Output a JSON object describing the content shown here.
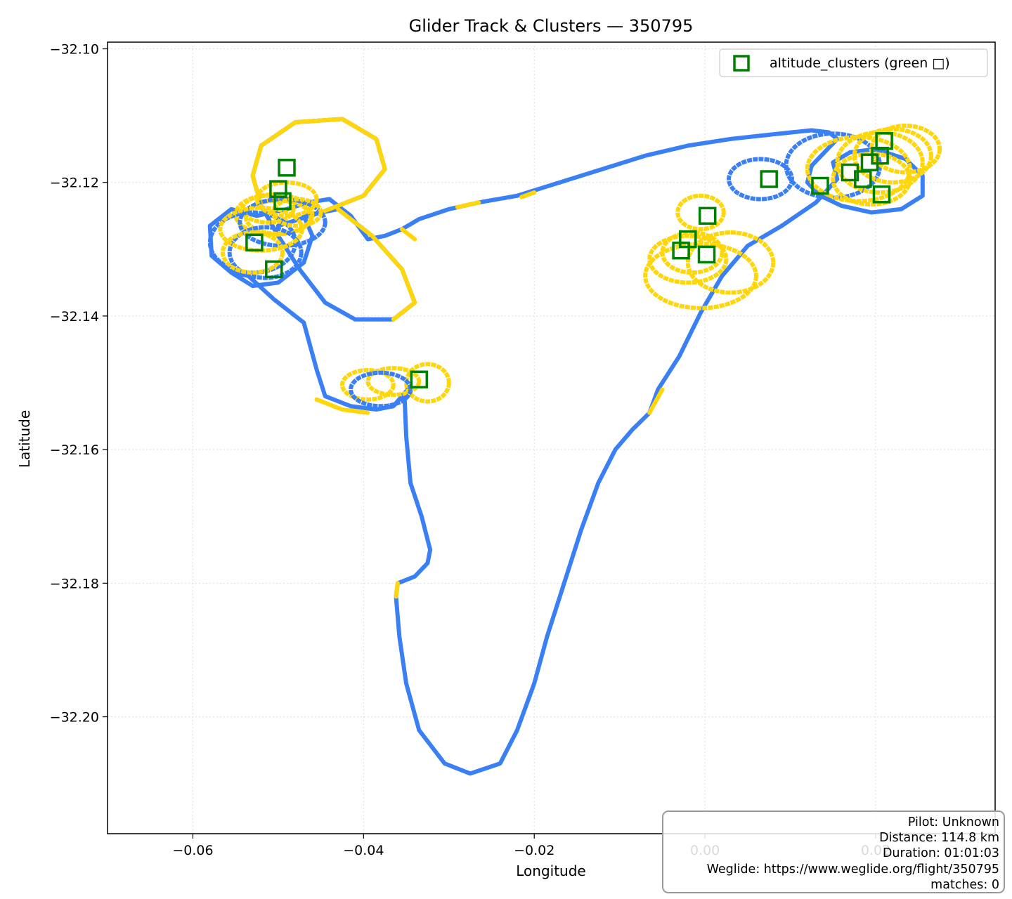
{
  "chart_data": {
    "type": "scatter",
    "title": "Glider Track & Clusters — 350795",
    "xlabel": "Longitude",
    "ylabel": "Latitude",
    "xlim": [
      -0.07,
      0.034
    ],
    "ylim": [
      -32.2175,
      -32.099
    ],
    "x_ticks": [
      -0.06,
      -0.04,
      -0.02,
      0.0,
      0.02
    ],
    "x_tick_labels": [
      "−0.06",
      "−0.04",
      "−0.02",
      "0.00",
      "0.02"
    ],
    "y_ticks": [
      -32.1,
      -32.12,
      -32.14,
      -32.16,
      -32.18,
      -32.2
    ],
    "y_tick_labels": [
      "−32.10",
      "−32.12",
      "−32.14",
      "−32.16",
      "−32.18",
      "−32.20"
    ],
    "grid": true,
    "legend": {
      "placement": "top-right",
      "entries": [
        {
          "label": "altitude_clusters (green □)",
          "color": "#008000",
          "marker": "hollow-square"
        }
      ]
    },
    "track_color": "#3b7ff5",
    "climb_color": "#ffd60a",
    "cluster_color": "#008000",
    "track_path": [
      [
        -0.0275,
        -32.2085
      ],
      [
        -0.0305,
        -32.207
      ],
      [
        -0.0335,
        -32.202
      ],
      [
        -0.035,
        -32.195
      ],
      [
        -0.0358,
        -32.188
      ],
      [
        -0.0362,
        -32.182
      ],
      [
        -0.036,
        -32.18
      ],
      [
        -0.034,
        -32.179
      ],
      [
        -0.0325,
        -32.177
      ],
      [
        -0.0322,
        -32.175
      ],
      [
        -0.0332,
        -32.17
      ],
      [
        -0.0345,
        -32.165
      ],
      [
        -0.035,
        -32.158
      ],
      [
        -0.0352,
        -32.152
      ],
      [
        -0.0345,
        -32.1505
      ],
      [
        -0.0365,
        -32.1535
      ],
      [
        -0.0385,
        -32.154
      ],
      [
        -0.0415,
        -32.1535
      ],
      [
        -0.0445,
        -32.152
      ],
      [
        -0.0455,
        -32.148
      ],
      [
        -0.047,
        -32.141
      ],
      [
        -0.0505,
        -32.1375
      ],
      [
        -0.0535,
        -32.134
      ],
      [
        -0.0555,
        -32.1335
      ],
      [
        -0.0578,
        -32.131
      ],
      [
        -0.058,
        -32.1265
      ],
      [
        -0.0555,
        -32.124
      ],
      [
        -0.0525,
        -32.125
      ],
      [
        -0.049,
        -32.124
      ],
      [
        -0.0465,
        -32.123
      ],
      [
        -0.044,
        -32.1225
      ],
      [
        -0.0415,
        -32.125
      ],
      [
        -0.0395,
        -32.1285
      ],
      [
        -0.0375,
        -32.128
      ],
      [
        -0.0355,
        -32.127
      ],
      [
        -0.0335,
        -32.1255
      ],
      [
        -0.03,
        -32.124
      ],
      [
        -0.0265,
        -32.123
      ],
      [
        -0.022,
        -32.122
      ],
      [
        -0.017,
        -32.12
      ],
      [
        -0.012,
        -32.118
      ],
      [
        -0.007,
        -32.116
      ],
      [
        -0.002,
        -32.1145
      ],
      [
        0.003,
        -32.1135
      ],
      [
        0.008,
        -32.1128
      ],
      [
        0.0125,
        -32.1122
      ],
      [
        0.0145,
        -32.1125
      ],
      [
        0.0155,
        -32.1135
      ],
      [
        0.014,
        -32.1155
      ],
      [
        0.0125,
        -32.1175
      ],
      [
        0.012,
        -32.12
      ],
      [
        0.0135,
        -32.122
      ],
      [
        0.016,
        -32.1235
      ],
      [
        0.0195,
        -32.1245
      ],
      [
        0.023,
        -32.124
      ],
      [
        0.0255,
        -32.122
      ],
      [
        0.0255,
        -32.119
      ],
      [
        0.0235,
        -32.1165
      ],
      [
        0.02,
        -32.115
      ],
      [
        0.017,
        -32.1155
      ],
      [
        0.015,
        -32.117
      ],
      [
        0.0155,
        -32.1195
      ],
      [
        0.013,
        -32.123
      ],
      [
        0.009,
        -32.1265
      ],
      [
        0.005,
        -32.1295
      ],
      [
        0.002,
        -32.134
      ],
      [
        -0.0005,
        -32.1395
      ],
      [
        -0.003,
        -32.146
      ],
      [
        -0.0055,
        -32.151
      ],
      [
        -0.0065,
        -32.1545
      ],
      [
        -0.0085,
        -32.157
      ],
      [
        -0.0105,
        -32.16
      ],
      [
        -0.0125,
        -32.165
      ],
      [
        -0.0145,
        -32.172
      ],
      [
        -0.0165,
        -32.18
      ],
      [
        -0.0185,
        -32.188
      ],
      [
        -0.02,
        -32.195
      ],
      [
        -0.022,
        -32.202
      ],
      [
        -0.024,
        -32.207
      ],
      [
        -0.0275,
        -32.2085
      ]
    ],
    "north_loop_path": [
      [
        -0.0555,
        -32.1335
      ],
      [
        -0.053,
        -32.1355
      ],
      [
        -0.05,
        -32.135
      ],
      [
        -0.047,
        -32.132
      ],
      [
        -0.046,
        -32.128
      ],
      [
        -0.047,
        -32.125
      ],
      [
        -0.043,
        -32.124
      ],
      [
        -0.039,
        -32.128
      ],
      [
        -0.0355,
        -32.133
      ],
      [
        -0.034,
        -32.138
      ],
      [
        -0.0365,
        -32.1405
      ],
      [
        -0.041,
        -32.1405
      ],
      [
        -0.0445,
        -32.138
      ],
      [
        -0.0475,
        -32.133
      ],
      [
        -0.05,
        -32.128
      ],
      [
        -0.052,
        -32.1235
      ],
      [
        -0.053,
        -32.119
      ],
      [
        -0.052,
        -32.1145
      ],
      [
        -0.048,
        -32.111
      ],
      [
        -0.0425,
        -32.1105
      ],
      [
        -0.0385,
        -32.1135
      ],
      [
        -0.0375,
        -32.118
      ],
      [
        -0.04,
        -32.122
      ],
      [
        -0.045,
        -32.1245
      ],
      [
        -0.05,
        -32.1265
      ]
    ],
    "circles": [
      {
        "cx": -0.0505,
        "cy": -32.1248,
        "rx": 0.0045,
        "ry": 0.003,
        "climb": true
      },
      {
        "cx": -0.05,
        "cy": -32.1252,
        "rx": 0.0038,
        "ry": 0.0025,
        "climb": true
      },
      {
        "cx": -0.0512,
        "cy": -32.124,
        "rx": 0.003,
        "ry": 0.002,
        "climb": true
      },
      {
        "cx": -0.0495,
        "cy": -32.126,
        "rx": 0.005,
        "ry": 0.0035,
        "climb": false
      },
      {
        "cx": -0.053,
        "cy": -32.129,
        "rx": 0.005,
        "ry": 0.0045,
        "climb": false
      },
      {
        "cx": -0.0515,
        "cy": -32.1305,
        "rx": 0.0042,
        "ry": 0.0038,
        "climb": false
      },
      {
        "cx": -0.049,
        "cy": -32.1225,
        "rx": 0.0035,
        "ry": 0.0025,
        "climb": true
      },
      {
        "cx": -0.052,
        "cy": -32.127,
        "rx": 0.0048,
        "ry": 0.0032,
        "climb": true
      },
      {
        "cx": -0.0478,
        "cy": -32.1245,
        "rx": 0.0028,
        "ry": 0.002,
        "climb": true
      },
      {
        "cx": -0.053,
        "cy": -32.1305,
        "rx": 0.0035,
        "ry": 0.003,
        "climb": true
      },
      {
        "cx": -0.0395,
        "cy": -32.1503,
        "rx": 0.003,
        "ry": 0.0022,
        "climb": true
      },
      {
        "cx": -0.0365,
        "cy": -32.1498,
        "rx": 0.003,
        "ry": 0.002,
        "climb": true
      },
      {
        "cx": -0.0325,
        "cy": -32.15,
        "rx": 0.0025,
        "ry": 0.0028,
        "climb": true
      },
      {
        "cx": -0.038,
        "cy": -32.151,
        "rx": 0.0035,
        "ry": 0.0025,
        "climb": false
      },
      {
        "cx": -0.002,
        "cy": -32.1315,
        "rx": 0.0045,
        "ry": 0.0035,
        "climb": true
      },
      {
        "cx": -0.0005,
        "cy": -32.134,
        "rx": 0.0065,
        "ry": 0.0048,
        "climb": true
      },
      {
        "cx": 0.003,
        "cy": -32.132,
        "rx": 0.005,
        "ry": 0.0045,
        "climb": true
      },
      {
        "cx": -0.0015,
        "cy": -32.1305,
        "rx": 0.0035,
        "ry": 0.003,
        "climb": true
      },
      {
        "cx": -0.0005,
        "cy": -32.1245,
        "rx": 0.0027,
        "ry": 0.0025,
        "climb": true
      },
      {
        "cx": 0.0065,
        "cy": -32.1195,
        "rx": 0.0037,
        "ry": 0.003,
        "climb": false
      },
      {
        "cx": 0.015,
        "cy": -32.1175,
        "rx": 0.0055,
        "ry": 0.0048,
        "climb": false
      },
      {
        "cx": 0.018,
        "cy": -32.118,
        "rx": 0.006,
        "ry": 0.0048,
        "climb": true
      },
      {
        "cx": 0.0205,
        "cy": -32.117,
        "rx": 0.005,
        "ry": 0.0045,
        "climb": true
      },
      {
        "cx": 0.022,
        "cy": -32.116,
        "rx": 0.0045,
        "ry": 0.004,
        "climb": true
      },
      {
        "cx": 0.0195,
        "cy": -32.1195,
        "rx": 0.0045,
        "ry": 0.0038,
        "climb": true
      },
      {
        "cx": 0.0235,
        "cy": -32.115,
        "rx": 0.004,
        "ry": 0.0035,
        "climb": true
      }
    ],
    "yellow_segments": [
      [
        [
          -0.0455,
          -32.1525
        ],
        [
          -0.0425,
          -32.154
        ],
        [
          -0.0395,
          -32.1545
        ]
      ],
      [
        [
          -0.0362,
          -32.182
        ],
        [
          -0.036,
          -32.18
        ]
      ],
      [
        [
          -0.0065,
          -32.1545
        ],
        [
          -0.005,
          -32.151
        ]
      ],
      [
        [
          -0.0215,
          -32.1222
        ],
        [
          -0.02,
          -32.1215
        ]
      ],
      [
        [
          -0.029,
          -32.1237
        ],
        [
          -0.0265,
          -32.123
        ]
      ],
      [
        [
          -0.0355,
          -32.127
        ],
        [
          -0.034,
          -32.1285
        ]
      ]
    ],
    "clusters": [
      [
        -0.049,
        -32.1178
      ],
      [
        -0.05,
        -32.121
      ],
      [
        -0.0495,
        -32.1228
      ],
      [
        -0.0528,
        -32.129
      ],
      [
        -0.0505,
        -32.133
      ],
      [
        -0.0335,
        -32.1495
      ],
      [
        0.0003,
        -32.125
      ],
      [
        -0.002,
        -32.1285
      ],
      [
        -0.0028,
        -32.1302
      ],
      [
        0.0002,
        -32.1308
      ],
      [
        0.0075,
        -32.1195
      ],
      [
        0.0135,
        -32.1205
      ],
      [
        0.017,
        -32.1185
      ],
      [
        0.0185,
        -32.1195
      ],
      [
        0.0193,
        -32.117
      ],
      [
        0.0205,
        -32.116
      ],
      [
        0.021,
        -32.1138
      ],
      [
        0.0207,
        -32.1218
      ]
    ]
  },
  "info_box": {
    "pilot": "Pilot: Unknown",
    "distance": "Distance: 114.8 km",
    "duration": "Duration: 01:01:03",
    "weglide": "Weglide: https://www.weglide.org/flight/350795",
    "matches": "matches: 0"
  }
}
